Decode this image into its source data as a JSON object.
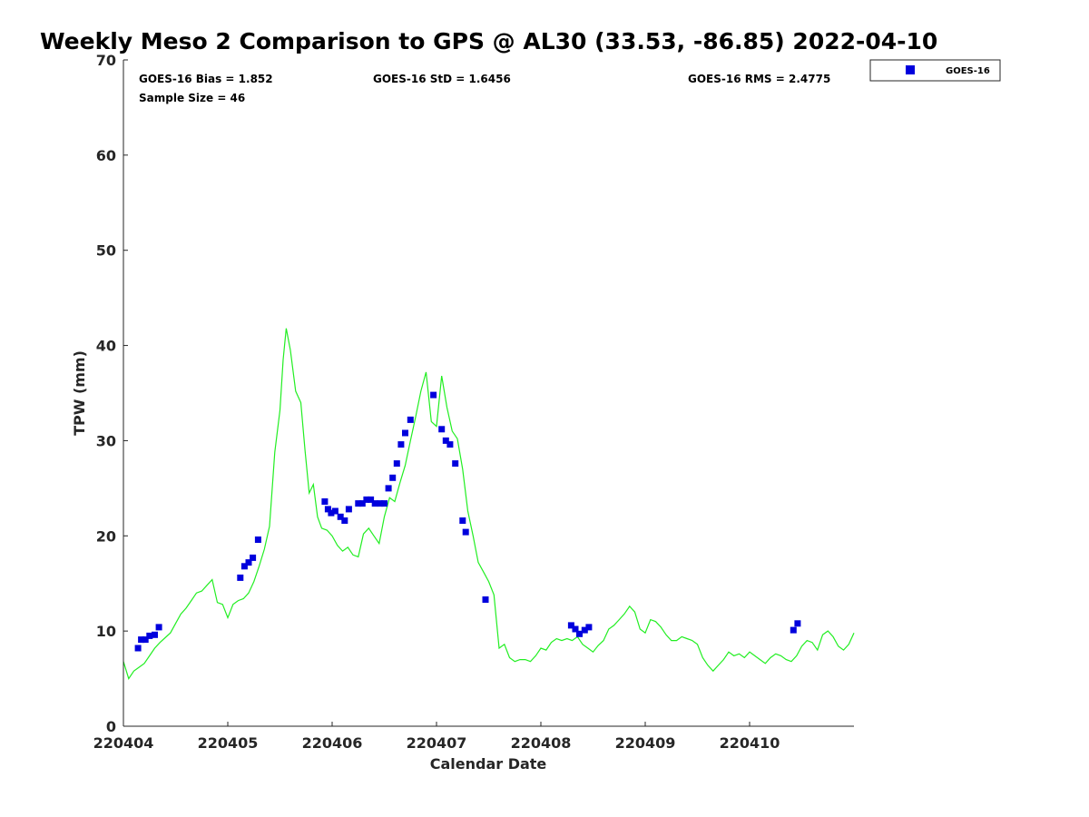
{
  "chart_data": {
    "type": "scatter",
    "title": "Weekly Meso 2 Comparison to GPS @ AL30 (33.53, -86.85) 2022-04-10",
    "xlabel": "Calendar Date",
    "ylabel": "TPW (mm)",
    "xlim": [
      0,
      7
    ],
    "ylim": [
      0,
      70
    ],
    "xticks": [
      0,
      1,
      2,
      3,
      4,
      5,
      6
    ],
    "xtick_labels": [
      "220404",
      "220405",
      "220406",
      "220407",
      "220408",
      "220409",
      "220410"
    ],
    "yticks": [
      0,
      10,
      20,
      30,
      40,
      50,
      60,
      70
    ],
    "ytick_labels": [
      "0",
      "10",
      "20",
      "30",
      "40",
      "50",
      "60",
      "70"
    ],
    "grid": false,
    "legend_position": "outside-top-right",
    "stats": {
      "bias": "GOES-16 Bias = 1.852",
      "std": "GOES-16 StD = 1.6456",
      "rms": "GOES-16 RMS = 2.4775",
      "sample": "Sample Size = 46"
    },
    "series": [
      {
        "name": "GOES-16",
        "kind": "scatter",
        "marker": "square",
        "color": "#0000dd",
        "x": [
          0.14,
          0.17,
          0.21,
          0.25,
          0.3,
          0.34,
          1.12,
          1.16,
          1.2,
          1.24,
          1.29,
          1.93,
          1.96,
          1.99,
          2.03,
          2.08,
          2.12,
          2.16,
          2.25,
          2.29,
          2.33,
          2.37,
          2.41,
          2.46,
          2.5,
          2.54,
          2.58,
          2.62,
          2.66,
          2.7,
          2.75,
          2.97,
          3.05,
          3.09,
          3.13,
          3.18,
          3.25,
          3.28,
          3.47,
          4.29,
          4.33,
          4.37,
          4.42,
          4.46,
          6.42,
          6.46
        ],
        "y": [
          8.2,
          9.1,
          9.1,
          9.5,
          9.6,
          10.4,
          15.6,
          16.8,
          17.2,
          17.7,
          19.6,
          23.6,
          22.8,
          22.4,
          22.6,
          22.0,
          21.6,
          22.8,
          23.4,
          23.4,
          23.8,
          23.8,
          23.4,
          23.4,
          23.4,
          25.0,
          26.1,
          27.6,
          29.6,
          30.8,
          32.2,
          34.8,
          31.2,
          30.0,
          29.6,
          27.6,
          21.6,
          20.4,
          13.3,
          10.6,
          10.2,
          9.7,
          10.1,
          10.4,
          10.1,
          10.8
        ]
      },
      {
        "name": "",
        "kind": "line",
        "color": "#22ee22",
        "x": [
          0.0,
          0.05,
          0.1,
          0.15,
          0.2,
          0.25,
          0.3,
          0.35,
          0.4,
          0.45,
          0.5,
          0.55,
          0.6,
          0.65,
          0.7,
          0.75,
          0.8,
          0.85,
          0.9,
          0.95,
          1.0,
          1.05,
          1.1,
          1.15,
          1.2,
          1.25,
          1.3,
          1.35,
          1.4,
          1.45,
          1.5,
          1.53,
          1.56,
          1.6,
          1.65,
          1.7,
          1.74,
          1.78,
          1.82,
          1.86,
          1.9,
          1.95,
          2.0,
          2.05,
          2.1,
          2.15,
          2.2,
          2.25,
          2.3,
          2.35,
          2.4,
          2.45,
          2.5,
          2.55,
          2.6,
          2.65,
          2.7,
          2.75,
          2.8,
          2.85,
          2.9,
          2.95,
          3.0,
          3.05,
          3.1,
          3.15,
          3.2,
          3.25,
          3.3,
          3.35,
          3.4,
          3.45,
          3.5,
          3.55,
          3.6,
          3.65,
          3.7,
          3.75,
          3.8,
          3.85,
          3.9,
          3.95,
          4.0,
          4.05,
          4.1,
          4.15,
          4.2,
          4.25,
          4.3,
          4.35,
          4.4,
          4.45,
          4.5,
          4.55,
          4.6,
          4.65,
          4.7,
          4.75,
          4.8,
          4.85,
          4.9,
          4.95,
          5.0,
          5.05,
          5.1,
          5.15,
          5.2,
          5.25,
          5.3,
          5.35,
          5.4,
          5.45,
          5.5,
          5.55,
          5.6,
          5.65,
          5.7,
          5.75,
          5.8,
          5.85,
          5.9,
          5.95,
          6.0,
          6.05,
          6.1,
          6.15,
          6.2,
          6.25,
          6.3,
          6.35,
          6.4,
          6.45,
          6.5,
          6.55,
          6.6,
          6.65,
          6.7,
          6.75,
          6.8,
          6.85,
          6.9,
          6.95,
          7.0
        ],
        "y": [
          6.8,
          5.0,
          5.8,
          6.2,
          6.6,
          7.4,
          8.2,
          8.8,
          9.3,
          9.8,
          10.8,
          11.8,
          12.4,
          13.2,
          14.0,
          14.2,
          14.8,
          15.4,
          13.0,
          12.8,
          11.4,
          12.8,
          13.2,
          13.4,
          14.0,
          15.2,
          16.8,
          18.6,
          21.0,
          28.8,
          33.2,
          38.5,
          41.8,
          39.5,
          35.2,
          34.0,
          29.0,
          24.5,
          25.4,
          22.0,
          20.8,
          20.6,
          20.0,
          19.0,
          18.4,
          18.8,
          18.0,
          17.8,
          20.2,
          20.8,
          20.0,
          19.2,
          22.0,
          24.0,
          23.6,
          25.6,
          27.4,
          30.0,
          32.5,
          35.2,
          37.2,
          32.0,
          31.5,
          36.8,
          33.5,
          31.0,
          30.2,
          27.0,
          22.6,
          20.0,
          17.2,
          16.2,
          15.2,
          13.8,
          8.2,
          8.6,
          7.2,
          6.8,
          7.0,
          7.0,
          6.8,
          7.4,
          8.2,
          8.0,
          8.8,
          9.2,
          9.0,
          9.2,
          9.0,
          9.4,
          8.6,
          8.2,
          7.8,
          8.5,
          9.0,
          10.2,
          10.6,
          11.2,
          11.8,
          12.6,
          12.0,
          10.2,
          9.8,
          11.2,
          11.0,
          10.4,
          9.6,
          9.0,
          9.0,
          9.4,
          9.2,
          9.0,
          8.6,
          7.2,
          6.4,
          5.8,
          6.4,
          7.0,
          7.8,
          7.4,
          7.6,
          7.2,
          7.8,
          7.4,
          7.0,
          6.6,
          7.2,
          7.6,
          7.4,
          7.0,
          6.8,
          7.4,
          8.4,
          9.0,
          8.8,
          8.0,
          9.6,
          10.0,
          9.4,
          8.4,
          8.0,
          8.6,
          9.8
        ]
      }
    ]
  }
}
